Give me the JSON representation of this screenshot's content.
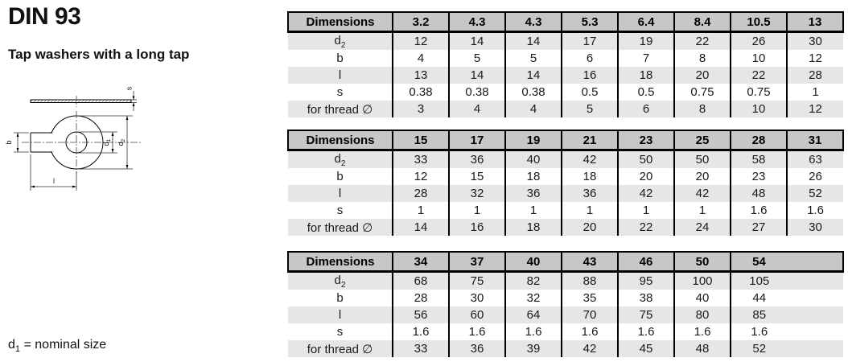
{
  "doc": {
    "title": "DIN 93",
    "subtitle": "Tap washers with a long tap",
    "note": {
      "base": "d",
      "sub": "1",
      "rest": " = nominal size"
    }
  },
  "drawing": {
    "labels": {
      "s": "s",
      "b": "b",
      "l": "l",
      "d1_base": "d",
      "d1_sub": "1",
      "d2_base": "d",
      "d2_sub": "2"
    }
  },
  "tables": [
    {
      "header_label": "Dimensions",
      "grid_columns": 8,
      "columns": [
        "3.2",
        "4.3",
        "4.3",
        "5.3",
        "6.4",
        "8.4",
        "10.5",
        "13"
      ],
      "rows": [
        {
          "label": "d",
          "label_sub": "2",
          "values": [
            "12",
            "14",
            "14",
            "17",
            "19",
            "22",
            "26",
            "30"
          ]
        },
        {
          "label": "b",
          "values": [
            "4",
            "5",
            "5",
            "6",
            "7",
            "8",
            "10",
            "12"
          ]
        },
        {
          "label": "l",
          "values": [
            "13",
            "14",
            "14",
            "16",
            "18",
            "20",
            "22",
            "28"
          ]
        },
        {
          "label": "s",
          "values": [
            "0.38",
            "0.38",
            "0.38",
            "0.5",
            "0.5",
            "0.75",
            "0.75",
            "1"
          ]
        },
        {
          "label": "for thread ∅",
          "values": [
            "3",
            "4",
            "4",
            "5",
            "6",
            "8",
            "10",
            "12"
          ]
        }
      ]
    },
    {
      "header_label": "Dimensions",
      "grid_columns": 8,
      "columns": [
        "15",
        "17",
        "19",
        "21",
        "23",
        "25",
        "28",
        "31"
      ],
      "rows": [
        {
          "label": "d",
          "label_sub": "2",
          "values": [
            "33",
            "36",
            "40",
            "42",
            "50",
            "50",
            "58",
            "63"
          ]
        },
        {
          "label": "b",
          "values": [
            "12",
            "15",
            "18",
            "18",
            "20",
            "20",
            "23",
            "26"
          ]
        },
        {
          "label": "l",
          "values": [
            "28",
            "32",
            "36",
            "36",
            "42",
            "42",
            "48",
            "52"
          ]
        },
        {
          "label": "s",
          "values": [
            "1",
            "1",
            "1",
            "1",
            "1",
            "1",
            "1.6",
            "1.6"
          ]
        },
        {
          "label": "for thread ∅",
          "values": [
            "14",
            "16",
            "18",
            "20",
            "22",
            "24",
            "27",
            "30"
          ]
        }
      ]
    },
    {
      "header_label": "Dimensions",
      "grid_columns": 8,
      "columns": [
        "34",
        "37",
        "40",
        "43",
        "46",
        "50",
        "54"
      ],
      "rows": [
        {
          "label": "d",
          "label_sub": "2",
          "values": [
            "68",
            "75",
            "82",
            "88",
            "95",
            "100",
            "105"
          ]
        },
        {
          "label": "b",
          "values": [
            "28",
            "30",
            "32",
            "35",
            "38",
            "40",
            "44"
          ]
        },
        {
          "label": "l",
          "values": [
            "56",
            "60",
            "64",
            "70",
            "75",
            "80",
            "85"
          ]
        },
        {
          "label": "s",
          "values": [
            "1.6",
            "1.6",
            "1.6",
            "1.6",
            "1.6",
            "1.6",
            "1.6"
          ]
        },
        {
          "label": "for thread ∅",
          "values": [
            "33",
            "36",
            "39",
            "42",
            "45",
            "48",
            "52"
          ]
        }
      ]
    }
  ]
}
